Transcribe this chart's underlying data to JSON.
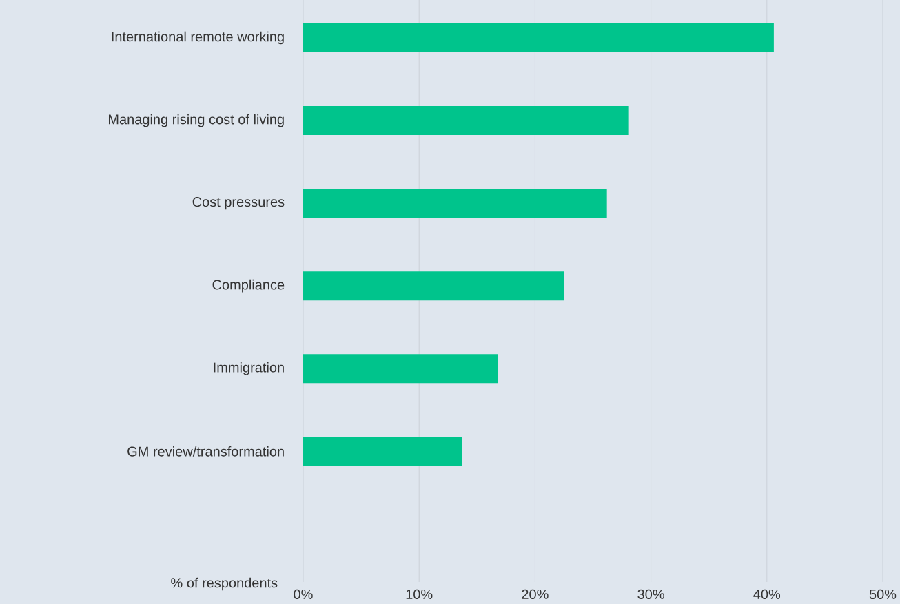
{
  "chart_data": {
    "type": "bar",
    "orientation": "horizontal",
    "categories": [
      "International remote working",
      "Managing rising cost of living",
      "Cost pressures",
      "Compliance",
      "Immigration",
      "GM review/transformation"
    ],
    "values": [
      40.6,
      28.1,
      26.2,
      22.5,
      16.8,
      13.7
    ],
    "color": "#00c48c",
    "xlabel": "% of respondents",
    "xlim": [
      0,
      50
    ],
    "xticks": [
      {
        "value": 0,
        "label": "0%"
      },
      {
        "value": 10,
        "label": "10%"
      },
      {
        "value": 20,
        "label": "20%"
      },
      {
        "value": 30,
        "label": "30%"
      },
      {
        "value": 40,
        "label": "40%"
      },
      {
        "value": 50,
        "label": "50%"
      }
    ],
    "grid": "x"
  }
}
